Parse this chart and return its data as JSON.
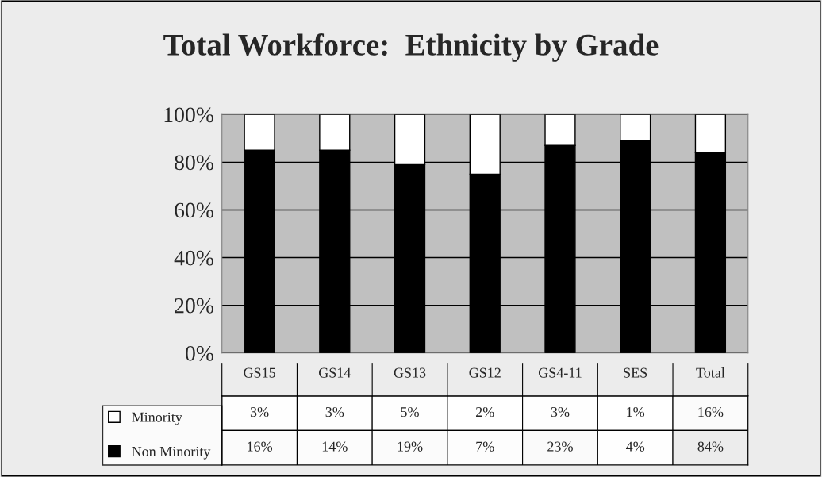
{
  "chart_data": [
    {
      "type": "bar",
      "title": "Total Workforce:  Ethnicity by Grade",
      "stacked": true,
      "legend": "bottom left",
      "tick_labels": "y",
      "categories": [
        null,
        null,
        null,
        null,
        null,
        null,
        null
      ],
      "series": [
        {
          "name": "Non Minority",
          "color": "#000000",
          "values": [
            85,
            85,
            79,
            75,
            87,
            89,
            84
          ]
        },
        {
          "name": "Minority",
          "color": "#ffffff",
          "values": [
            15,
            15,
            21,
            25,
            13,
            11,
            16
          ]
        }
      ],
      "ylim": [
        0,
        100
      ],
      "yticks": [
        {
          "value": 0,
          "label": "0%"
        },
        {
          "value": 20,
          "label": "20%"
        },
        {
          "value": 40,
          "label": "40%"
        },
        {
          "value": 60,
          "label": "60%"
        },
        {
          "value": 80,
          "label": "80%"
        },
        {
          "value": 100,
          "label": "100%"
        }
      ],
      "grid": "y"
    },
    {
      "type": "heatmap",
      "tick_labels": "x",
      "categories": [
        "GS15",
        "GS14",
        "GS13",
        "GS12",
        "GS4-11",
        "SES",
        "Total"
      ],
      "y_categories": [
        null,
        null
      ],
      "cells": [
        [
          3,
          3,
          5,
          2,
          3,
          1,
          16
        ],
        [
          16,
          14,
          19,
          7,
          23,
          4,
          84
        ]
      ],
      "cell_labels": [
        [
          "3%",
          "3%",
          "5%",
          "2%",
          "3%",
          "1%",
          "16%"
        ],
        [
          "16%",
          "14%",
          "19%",
          "7%",
          "23%",
          "4%",
          "84%"
        ]
      ]
    }
  ]
}
